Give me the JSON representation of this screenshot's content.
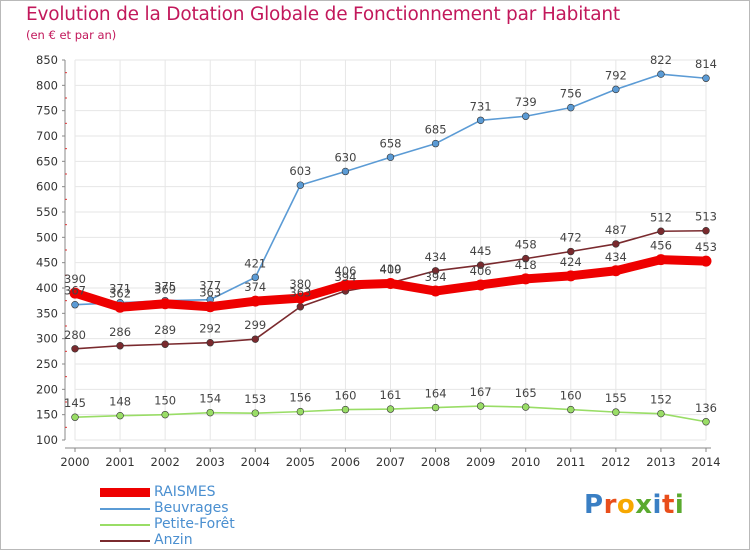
{
  "header": {
    "title": "Evolution de la Dotation Globale de Fonctionnement par Habitant",
    "subtitle": "(en € et par an)"
  },
  "logo": {
    "letters": [
      "P",
      "r",
      "o",
      "x",
      "i",
      "t",
      "i"
    ],
    "colors": [
      "#3a7fc4",
      "#e94e1b",
      "#f7a800",
      "#5aaa2e",
      "#3a7fc4",
      "#e94e1b",
      "#5aaa2e"
    ]
  },
  "chart_data": {
    "type": "line",
    "title": "Evolution de la Dotation Globale de Fonctionnement par Habitant",
    "subtitle": "(en € et par an)",
    "xlabel": "",
    "ylabel": "",
    "x": [
      "2000",
      "2001",
      "2002",
      "2003",
      "2004",
      "2005",
      "2006",
      "2007",
      "2008",
      "2009",
      "2010",
      "2011",
      "2012",
      "2013",
      "2014"
    ],
    "ylim": [
      100,
      850
    ],
    "yticks": [
      100,
      150,
      200,
      250,
      300,
      350,
      400,
      450,
      500,
      550,
      600,
      650,
      700,
      750,
      800,
      850
    ],
    "grid": true,
    "legend_position": "bottom-left",
    "series": [
      {
        "name": "RAISMES",
        "color": "#ee0000",
        "values": [
          390,
          362,
          369,
          363,
          374,
          380,
          406,
          409,
          394,
          406,
          418,
          424,
          434,
          456,
          453
        ],
        "labels": [
          "390",
          "362",
          "369",
          "363",
          "374",
          "380",
          "406",
          "409",
          "394",
          "406",
          "418",
          "424",
          "434",
          "456",
          "453"
        ]
      },
      {
        "name": "Beuvrages",
        "color": "#5b9bd5",
        "values": [
          367,
          371,
          375,
          377,
          421,
          603,
          630,
          658,
          685,
          731,
          739,
          756,
          792,
          822,
          814
        ],
        "labels": [
          "367",
          "371",
          "375",
          "377",
          "421",
          "603",
          "630",
          "658",
          "685",
          "731",
          "739",
          "756",
          "792",
          "822",
          "814"
        ]
      },
      {
        "name": "Petite-Forêt",
        "color": "#99dd66",
        "values": [
          145,
          148,
          150,
          154,
          153,
          156,
          160,
          161,
          164,
          167,
          165,
          160,
          155,
          152,
          136
        ],
        "labels": [
          "145",
          "148",
          "150",
          "154",
          "153",
          "156",
          "160",
          "161",
          "164",
          "167",
          "165",
          "160",
          "155",
          "152",
          "136"
        ]
      },
      {
        "name": "Anzin",
        "color": "#7a2a2e",
        "values": [
          280,
          286,
          289,
          292,
          299,
          363,
          394,
          410,
          434,
          445,
          458,
          472,
          487,
          512,
          513
        ],
        "labels": [
          "280",
          "286",
          "289",
          "292",
          "299",
          "363",
          "394",
          "410",
          "434",
          "445",
          "458",
          "472",
          "487",
          "512",
          "513"
        ]
      }
    ]
  }
}
